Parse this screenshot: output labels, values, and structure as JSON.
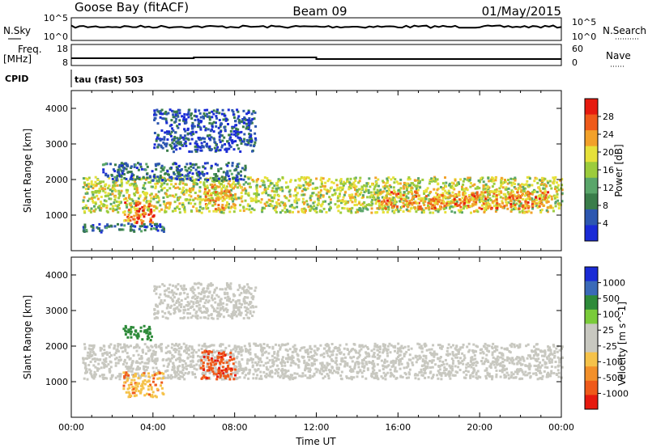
{
  "header": {
    "station": "Goose Bay (fitACF)",
    "beam": "Beam 09",
    "date": "01/May/2015"
  },
  "status_panels": {
    "left_labels": [
      "N.Sky",
      "Freq.",
      "[MHz]",
      "CPID"
    ],
    "right_labels": [
      "N.Search",
      "Nave"
    ],
    "nsky_ticks": [
      "10^5",
      "10^0"
    ],
    "nsearch_ticks": [
      "10^5",
      "10^0"
    ],
    "freq_ticks": [
      "18",
      "8"
    ],
    "nave_ticks": [
      "60",
      "0"
    ],
    "cpid_text": "tau (fast) 503"
  },
  "colors": {
    "power_scale": [
      "#1a2bd6",
      "#2d57b0",
      "#3a7d4a",
      "#5aa66a",
      "#9ccc3c",
      "#e6e13a",
      "#f2a12a",
      "#ef5a1a",
      "#e61a0f"
    ],
    "velocity_scale": [
      "#e61a0f",
      "#ef5a1a",
      "#f2902a",
      "#f5c24a",
      "#c8c8c0",
      "#c8c8c0",
      "#7acb3a",
      "#2e8b3a",
      "#3a6ab8",
      "#1a2bd6"
    ]
  },
  "chart_data": [
    {
      "type": "heatmap",
      "name": "power",
      "xlabel": "",
      "ylabel": "Slant Range [km]",
      "yticks": [
        "1000",
        "2000",
        "3000",
        "4000"
      ],
      "ylim": [
        0,
        4500
      ],
      "xlim": [
        0,
        24
      ],
      "colorbar": {
        "label": "Power [dB]",
        "ticks": [
          "4",
          "8",
          "12",
          "16",
          "20",
          "24",
          "28"
        ]
      },
      "bands": [
        {
          "t0": 0.5,
          "t1": 24,
          "r0": 1100,
          "r1": 2100,
          "level": 0.55,
          "desc_value_db": 14
        },
        {
          "t0": 15,
          "t1": 23.5,
          "r0": 1200,
          "r1": 1700,
          "level": 0.75,
          "desc_value_db": 22
        },
        {
          "t0": 2.5,
          "t1": 4.0,
          "r0": 800,
          "r1": 1400,
          "level": 0.8,
          "desc_value_db": 24
        },
        {
          "t0": 6.5,
          "t1": 8.0,
          "r0": 1200,
          "r1": 1900,
          "level": 0.7,
          "desc_value_db": 20
        },
        {
          "t0": 1.5,
          "t1": 8.5,
          "r0": 2000,
          "r1": 2500,
          "level": 0.2,
          "desc_value_db": 6
        },
        {
          "t0": 4.0,
          "t1": 9.0,
          "r0": 2800,
          "r1": 4000,
          "level": 0.15,
          "desc_value_db": 5
        },
        {
          "t0": 0.5,
          "t1": 4.5,
          "r0": 550,
          "r1": 800,
          "level": 0.2,
          "desc_value_db": 6
        }
      ]
    },
    {
      "type": "heatmap",
      "name": "velocity",
      "xlabel": "Time UT",
      "ylabel": "Slant Range [km]",
      "xticks": [
        "00:00",
        "04:00",
        "08:00",
        "12:00",
        "16:00",
        "20:00",
        "00:00"
      ],
      "yticks": [
        "1000",
        "2000",
        "3000",
        "4000"
      ],
      "ylim": [
        0,
        4500
      ],
      "xlim": [
        0,
        24
      ],
      "colorbar": {
        "label": "Velocity [m s^-1]",
        "ticks": [
          "1000",
          "500",
          "100",
          "25",
          "-25",
          "-100",
          "-500",
          "-1000"
        ]
      },
      "bands": [
        {
          "t0": 0.5,
          "t1": 24,
          "r0": 1100,
          "r1": 2100,
          "vel": 0
        },
        {
          "t0": 6.3,
          "t1": 8.0,
          "r0": 1100,
          "r1": 1900,
          "vel": -400
        },
        {
          "t0": 2.5,
          "t1": 4.0,
          "r0": 2200,
          "r1": 2600,
          "vel": 300
        },
        {
          "t0": 2.5,
          "t1": 4.5,
          "r0": 600,
          "r1": 1300,
          "vel": -80
        },
        {
          "t0": 4.0,
          "t1": 9.0,
          "r0": 2800,
          "r1": 3800,
          "vel": 0
        }
      ]
    }
  ]
}
